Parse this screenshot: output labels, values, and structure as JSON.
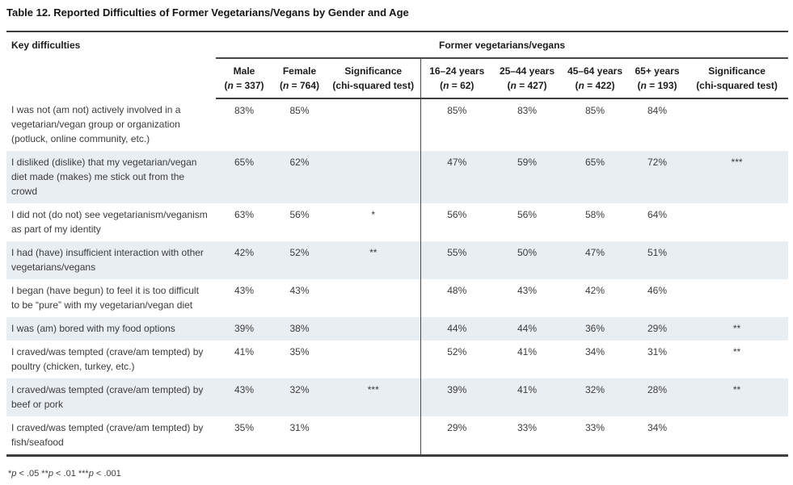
{
  "title": "Table 12. Reported Difficulties of Former Vegetarians/Vegans by Gender and Age",
  "table": {
    "key_column_header": "Key difficulties",
    "group_header": "Former vegetarians/vegans",
    "columns": [
      {
        "label": "Male",
        "sub_pre": "(",
        "sub_n": "n",
        "sub_post": " = 337)"
      },
      {
        "label": "Female",
        "sub_pre": "(",
        "sub_n": "n",
        "sub_post": " = 764)"
      },
      {
        "label": "Significance",
        "sub_pre": "",
        "sub_n": "",
        "sub_post": "(chi-squared test)"
      },
      {
        "label": "16–24 years",
        "sub_pre": "(",
        "sub_n": "n",
        "sub_post": " = 62)"
      },
      {
        "label": "25–44 years",
        "sub_pre": "(",
        "sub_n": "n",
        "sub_post": " = 427)"
      },
      {
        "label": "45–64 years",
        "sub_pre": "(",
        "sub_n": "n",
        "sub_post": " = 422)"
      },
      {
        "label": "65+ years",
        "sub_pre": "(",
        "sub_n": "n",
        "sub_post": " = 193)"
      },
      {
        "label": "Significance",
        "sub_pre": "",
        "sub_n": "",
        "sub_post": "(chi-squared test)"
      }
    ],
    "rows": [
      {
        "label": "I was not (am not) actively involved in a vegetarian/vegan group or organization (potluck, online community, etc.)",
        "values": [
          "83%",
          "85%",
          "",
          "85%",
          "83%",
          "85%",
          "84%",
          ""
        ]
      },
      {
        "label": "I disliked (dislike) that my vegetarian/vegan diet made (makes) me stick out from the crowd",
        "values": [
          "65%",
          "62%",
          "",
          "47%",
          "59%",
          "65%",
          "72%",
          "***"
        ]
      },
      {
        "label": "I did not (do not) see vegetarianism/veganism as part of my identity",
        "values": [
          "63%",
          "56%",
          "*",
          "56%",
          "56%",
          "58%",
          "64%",
          ""
        ]
      },
      {
        "label": "I had (have) insufficient interaction with other vegetarians/vegans",
        "values": [
          "42%",
          "52%",
          "**",
          "55%",
          "50%",
          "47%",
          "51%",
          ""
        ]
      },
      {
        "label": "I began (have begun) to feel it is too difficult to be “pure” with my vegetarian/vegan diet",
        "values": [
          "43%",
          "43%",
          "",
          "48%",
          "43%",
          "42%",
          "46%",
          ""
        ]
      },
      {
        "label": "I was (am) bored with my food options",
        "values": [
          "39%",
          "38%",
          "",
          "44%",
          "44%",
          "36%",
          "29%",
          "**"
        ]
      },
      {
        "label": "I craved/was tempted (crave/am tempted) by poultry (chicken, turkey, etc.)",
        "values": [
          "41%",
          "35%",
          "",
          "52%",
          "41%",
          "34%",
          "31%",
          "**"
        ]
      },
      {
        "label": "I craved/was tempted (crave/am tempted) by beef or pork",
        "values": [
          "43%",
          "32%",
          "***",
          "39%",
          "41%",
          "32%",
          "28%",
          "**"
        ]
      },
      {
        "label": "I craved/was tempted (crave/am tempted) by fish/seafood",
        "values": [
          "35%",
          "31%",
          "",
          "29%",
          "33%",
          "33%",
          "34%",
          ""
        ]
      }
    ]
  },
  "footnote": {
    "parts": [
      "*",
      "p",
      " < .05 **",
      "p",
      " < .01 ***",
      "p",
      " < .001"
    ]
  }
}
